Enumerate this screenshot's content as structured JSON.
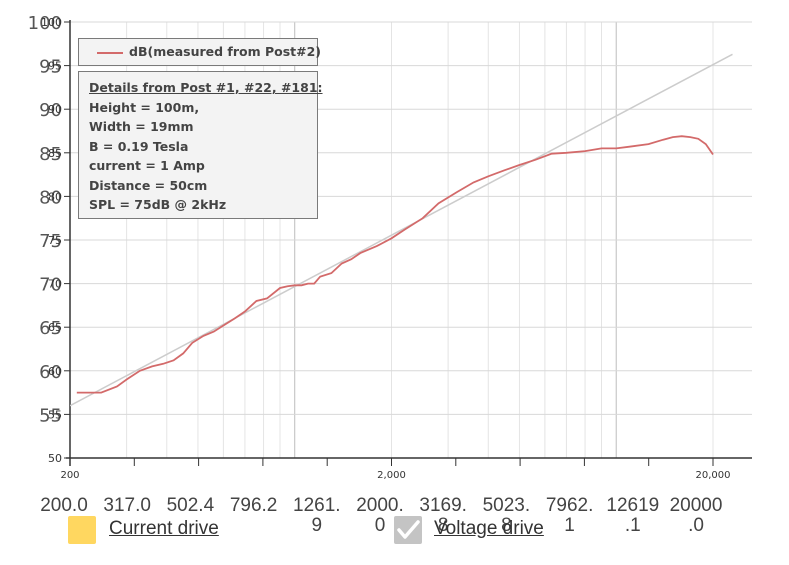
{
  "chart_data": {
    "type": "line",
    "xscale": "log",
    "xlim": [
      200,
      20000
    ],
    "ylim": [
      50,
      100
    ],
    "grid": true,
    "legend_position": "top-left",
    "x_tick_labels": [
      "200",
      "2,000",
      "20,000"
    ],
    "y_tick_labels_large": [
      "100",
      "95",
      "90",
      "85",
      "80",
      "75",
      "70",
      "65",
      "60",
      "55"
    ],
    "y_tick_labels_small": [
      "100",
      "95",
      "90",
      "85",
      "80",
      "75",
      "70",
      "65",
      "60",
      "55",
      "50"
    ],
    "series": [
      {
        "name": "dB(measured from Post#2)",
        "color": "#d36a6a",
        "x": [
          210,
          250,
          280,
          300,
          330,
          360,
          390,
          420,
          450,
          480,
          520,
          560,
          600,
          650,
          700,
          760,
          820,
          900,
          950,
          1000,
          1050,
          1100,
          1150,
          1200,
          1300,
          1400,
          1500,
          1600,
          1800,
          2000,
          2200,
          2500,
          2800,
          3200,
          3600,
          4000,
          4500,
          5000,
          5600,
          6300,
          7000,
          8000,
          9000,
          10000,
          11000,
          12600,
          14000,
          15000,
          16000,
          17000,
          18000,
          19000,
          20000
        ],
        "y": [
          57.5,
          57.5,
          58.2,
          59.0,
          60.0,
          60.5,
          60.8,
          61.2,
          62.0,
          63.2,
          64.0,
          64.5,
          65.2,
          66.0,
          66.8,
          68.0,
          68.3,
          69.5,
          69.7,
          69.8,
          69.8,
          70.0,
          70.0,
          70.8,
          71.2,
          72.3,
          72.8,
          73.5,
          74.3,
          75.2,
          76.2,
          77.5,
          79.2,
          80.5,
          81.6,
          82.3,
          83.0,
          83.6,
          84.2,
          84.9,
          85.0,
          85.2,
          85.5,
          85.5,
          85.7,
          86.0,
          86.5,
          86.8,
          86.9,
          86.8,
          86.6,
          86.0,
          84.8
        ]
      },
      {
        "name": "",
        "color": "#cccccc",
        "x": [
          200,
          23000
        ],
        "y": [
          56.0,
          96.3
        ]
      }
    ],
    "bottom_ticks": [
      {
        "top": "200.0",
        "bottom": ""
      },
      {
        "top": "317.0",
        "bottom": ""
      },
      {
        "top": "502.4",
        "bottom": ""
      },
      {
        "top": "796.2",
        "bottom": ""
      },
      {
        "top": "1261.",
        "bottom": "9"
      },
      {
        "top": "2000.",
        "bottom": "0"
      },
      {
        "top": "3169.",
        "bottom": "8"
      },
      {
        "top": "5023.",
        "bottom": "8"
      },
      {
        "top": "7962.",
        "bottom": "1"
      },
      {
        "top": "12619",
        "bottom": ".1"
      },
      {
        "top": "20000",
        "bottom": ".0"
      }
    ]
  },
  "details": {
    "title": "Details from Post #1, #22, #181:",
    "lines": [
      "Height = 100m,",
      "Width = 19mm",
      "B = 0.19 Tesla",
      "current = 1 Amp",
      "Distance = 50cm",
      "SPL = 75dB @ 2kHz"
    ]
  },
  "controls": {
    "current_drive_label": "Current drive",
    "current_drive_color": "#ffd760",
    "voltage_drive_label": "Voltage drive",
    "voltage_drive_color": "#c4c4c4"
  }
}
